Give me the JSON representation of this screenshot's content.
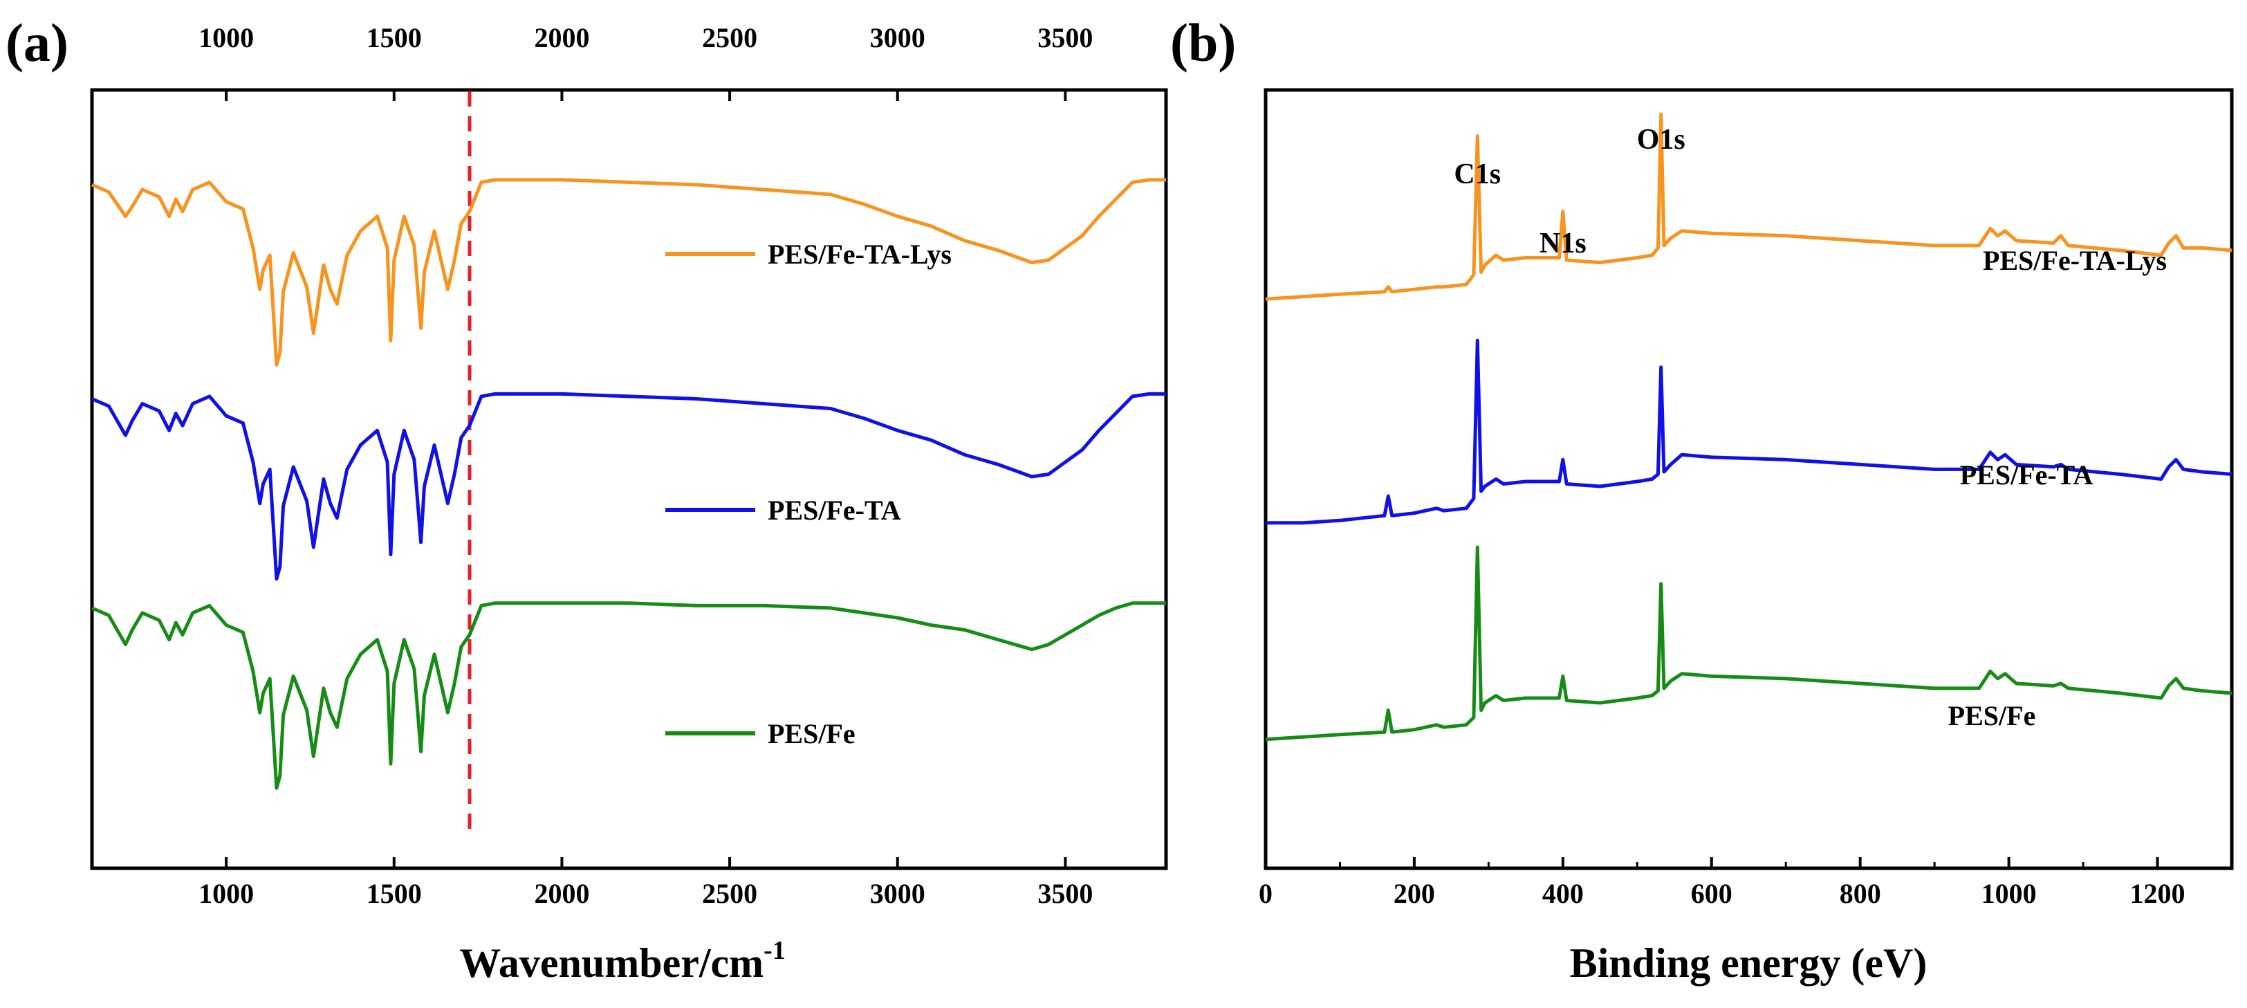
{
  "panels": {
    "a": {
      "label": "(a)"
    },
    "b": {
      "label": "(b)"
    }
  },
  "chart_data": [
    {
      "panel": "(a)",
      "type": "line",
      "title": "",
      "xlabel": "Wavenumber/cm",
      "xlabel_superscript": "-1",
      "ylabel": "",
      "xlim": [
        600,
        3800
      ],
      "ylim": [
        0,
        3
      ],
      "xticks": [
        1000,
        1500,
        2000,
        2500,
        3000,
        3500
      ],
      "xtick_labels": [
        "1000",
        "1500",
        "2000",
        "2500",
        "3000",
        "3500"
      ],
      "top_xticks": [
        1000,
        1500,
        2000,
        2500,
        3000,
        3500
      ],
      "top_xtick_labels": [
        "1000",
        "1500",
        "2000",
        "2500",
        "3000",
        "3500"
      ],
      "reference_line": {
        "x": 1725,
        "style": "dashed",
        "color": "#e8202a"
      },
      "legend_placement": "right of each curve",
      "series": [
        {
          "name": "PES/Fe-TA-Lys",
          "color": "#f7931e",
          "x": [
            600,
            650,
            700,
            720,
            750,
            800,
            830,
            850,
            870,
            900,
            950,
            1000,
            1050,
            1080,
            1100,
            1110,
            1130,
            1150,
            1160,
            1170,
            1200,
            1240,
            1260,
            1290,
            1310,
            1330,
            1360,
            1400,
            1450,
            1480,
            1490,
            1500,
            1530,
            1560,
            1580,
            1590,
            1620,
            1660,
            1680,
            1700,
            1725,
            1760,
            1800,
            2000,
            2200,
            2400,
            2600,
            2800,
            2900,
            3000,
            3100,
            3200,
            3300,
            3400,
            3450,
            3500,
            3550,
            3600,
            3650,
            3700,
            3750,
            3800
          ],
          "y": [
            2.71,
            2.68,
            2.58,
            2.62,
            2.69,
            2.66,
            2.58,
            2.65,
            2.6,
            2.69,
            2.72,
            2.64,
            2.61,
            2.45,
            2.28,
            2.36,
            2.42,
            1.97,
            2.02,
            2.27,
            2.43,
            2.29,
            2.1,
            2.38,
            2.28,
            2.22,
            2.42,
            2.52,
            2.58,
            2.45,
            2.07,
            2.4,
            2.58,
            2.46,
            2.12,
            2.35,
            2.52,
            2.28,
            2.4,
            2.55,
            2.6,
            2.72,
            2.73,
            2.73,
            2.72,
            2.71,
            2.69,
            2.67,
            2.63,
            2.58,
            2.54,
            2.48,
            2.44,
            2.39,
            2.4,
            2.45,
            2.5,
            2.58,
            2.65,
            2.72,
            2.73,
            2.73
          ]
        },
        {
          "name": "PES/Fe-TA",
          "color": "#1010e8",
          "x": [
            600,
            650,
            700,
            720,
            750,
            800,
            830,
            850,
            870,
            900,
            950,
            1000,
            1050,
            1080,
            1100,
            1110,
            1130,
            1150,
            1160,
            1170,
            1200,
            1240,
            1260,
            1290,
            1310,
            1330,
            1360,
            1400,
            1450,
            1480,
            1490,
            1500,
            1530,
            1560,
            1580,
            1590,
            1620,
            1660,
            1680,
            1700,
            1725,
            1760,
            1800,
            2000,
            2200,
            2400,
            2600,
            2800,
            2900,
            3000,
            3100,
            3200,
            3300,
            3400,
            3450,
            3500,
            3550,
            3600,
            3650,
            3700,
            3750,
            3800
          ],
          "y": [
            1.83,
            1.8,
            1.68,
            1.74,
            1.81,
            1.78,
            1.7,
            1.77,
            1.72,
            1.81,
            1.84,
            1.76,
            1.73,
            1.57,
            1.4,
            1.48,
            1.54,
            1.09,
            1.14,
            1.39,
            1.55,
            1.41,
            1.22,
            1.5,
            1.4,
            1.34,
            1.54,
            1.64,
            1.7,
            1.57,
            1.19,
            1.52,
            1.7,
            1.58,
            1.24,
            1.47,
            1.64,
            1.4,
            1.52,
            1.67,
            1.72,
            1.84,
            1.85,
            1.85,
            1.84,
            1.83,
            1.81,
            1.79,
            1.75,
            1.7,
            1.66,
            1.6,
            1.56,
            1.51,
            1.52,
            1.57,
            1.62,
            1.7,
            1.77,
            1.84,
            1.85,
            1.85
          ]
        },
        {
          "name": "PES/Fe",
          "color": "#168c16",
          "x": [
            600,
            650,
            700,
            720,
            750,
            800,
            830,
            850,
            870,
            900,
            950,
            1000,
            1050,
            1080,
            1100,
            1110,
            1130,
            1150,
            1160,
            1170,
            1200,
            1240,
            1260,
            1290,
            1310,
            1330,
            1360,
            1400,
            1450,
            1480,
            1490,
            1500,
            1530,
            1560,
            1580,
            1590,
            1620,
            1660,
            1680,
            1700,
            1725,
            1760,
            1800,
            2000,
            2200,
            2400,
            2600,
            2800,
            2900,
            3000,
            3100,
            3200,
            3300,
            3400,
            3450,
            3500,
            3550,
            3600,
            3650,
            3700,
            3750,
            3800
          ],
          "y": [
            0.97,
            0.94,
            0.82,
            0.88,
            0.95,
            0.92,
            0.84,
            0.91,
            0.86,
            0.95,
            0.98,
            0.9,
            0.87,
            0.71,
            0.54,
            0.62,
            0.68,
            0.23,
            0.28,
            0.53,
            0.69,
            0.55,
            0.36,
            0.64,
            0.54,
            0.48,
            0.68,
            0.78,
            0.84,
            0.71,
            0.33,
            0.66,
            0.84,
            0.72,
            0.38,
            0.61,
            0.78,
            0.54,
            0.66,
            0.81,
            0.86,
            0.98,
            0.99,
            0.99,
            0.99,
            0.98,
            0.98,
            0.97,
            0.95,
            0.93,
            0.9,
            0.88,
            0.84,
            0.8,
            0.82,
            0.86,
            0.9,
            0.94,
            0.97,
            0.99,
            0.99,
            0.99
          ]
        }
      ]
    },
    {
      "panel": "(b)",
      "type": "line",
      "title": "",
      "xlabel": "Binding energy (eV)",
      "ylabel": "",
      "xlim": [
        0,
        1300
      ],
      "ylim": [
        0,
        3
      ],
      "xticks": [
        0,
        200,
        400,
        600,
        800,
        1000,
        1200
      ],
      "xtick_labels": [
        "0",
        "200",
        "400",
        "600",
        "800",
        "1000",
        "1200"
      ],
      "annotations": [
        {
          "text": "C1s",
          "x": 285
        },
        {
          "text": "N1s",
          "x": 400
        },
        {
          "text": "O1s",
          "x": 532
        }
      ],
      "series": [
        {
          "name": "PES/Fe-TA-Lys",
          "color": "#f7931e",
          "x": [
            0,
            50,
            100,
            160,
            165,
            170,
            200,
            230,
            240,
            270,
            280,
            285,
            290,
            295,
            310,
            320,
            350,
            395,
            400,
            405,
            450,
            500,
            520,
            528,
            532,
            536,
            545,
            560,
            600,
            700,
            800,
            900,
            960,
            975,
            985,
            995,
            1010,
            1060,
            1070,
            1080,
            1150,
            1205,
            1215,
            1225,
            1235,
            1260,
            1300
          ],
          "y": [
            2.24,
            2.25,
            2.26,
            2.27,
            2.29,
            2.27,
            2.28,
            2.29,
            2.29,
            2.3,
            2.34,
            2.91,
            2.35,
            2.38,
            2.42,
            2.4,
            2.41,
            2.41,
            2.6,
            2.4,
            2.39,
            2.41,
            2.42,
            2.45,
            3.0,
            2.46,
            2.49,
            2.52,
            2.51,
            2.5,
            2.48,
            2.46,
            2.46,
            2.53,
            2.5,
            2.52,
            2.48,
            2.47,
            2.5,
            2.46,
            2.44,
            2.42,
            2.47,
            2.5,
            2.45,
            2.45,
            2.44
          ]
        },
        {
          "name": "PES/Fe-TA",
          "color": "#1010e8",
          "x": [
            0,
            50,
            100,
            160,
            165,
            170,
            200,
            230,
            240,
            270,
            280,
            285,
            290,
            295,
            310,
            320,
            350,
            395,
            400,
            405,
            450,
            500,
            520,
            528,
            532,
            536,
            545,
            560,
            600,
            700,
            800,
            900,
            960,
            975,
            985,
            995,
            1010,
            1060,
            1070,
            1080,
            1150,
            1205,
            1215,
            1225,
            1235,
            1260,
            1300
          ],
          "y": [
            1.32,
            1.32,
            1.33,
            1.35,
            1.43,
            1.35,
            1.36,
            1.38,
            1.37,
            1.38,
            1.42,
            2.07,
            1.45,
            1.47,
            1.5,
            1.48,
            1.49,
            1.49,
            1.58,
            1.48,
            1.47,
            1.49,
            1.5,
            1.52,
            1.96,
            1.53,
            1.56,
            1.6,
            1.59,
            1.58,
            1.56,
            1.54,
            1.54,
            1.61,
            1.58,
            1.6,
            1.56,
            1.55,
            1.56,
            1.54,
            1.52,
            1.5,
            1.55,
            1.58,
            1.54,
            1.53,
            1.52
          ]
        },
        {
          "name": "PES/Fe",
          "color": "#168c16",
          "x": [
            0,
            50,
            100,
            160,
            165,
            170,
            200,
            230,
            240,
            270,
            280,
            285,
            290,
            295,
            310,
            320,
            350,
            395,
            400,
            405,
            450,
            500,
            520,
            528,
            532,
            536,
            545,
            560,
            600,
            700,
            800,
            900,
            960,
            975,
            985,
            995,
            1010,
            1060,
            1070,
            1080,
            1150,
            1205,
            1215,
            1225,
            1235,
            1260,
            1300
          ],
          "y": [
            0.43,
            0.44,
            0.45,
            0.46,
            0.55,
            0.46,
            0.47,
            0.49,
            0.48,
            0.49,
            0.52,
            1.22,
            0.55,
            0.58,
            0.61,
            0.59,
            0.6,
            0.6,
            0.69,
            0.59,
            0.58,
            0.6,
            0.61,
            0.63,
            1.07,
            0.64,
            0.67,
            0.7,
            0.69,
            0.68,
            0.66,
            0.64,
            0.64,
            0.71,
            0.68,
            0.7,
            0.66,
            0.65,
            0.66,
            0.64,
            0.62,
            0.6,
            0.65,
            0.68,
            0.64,
            0.63,
            0.62
          ]
        }
      ]
    }
  ]
}
